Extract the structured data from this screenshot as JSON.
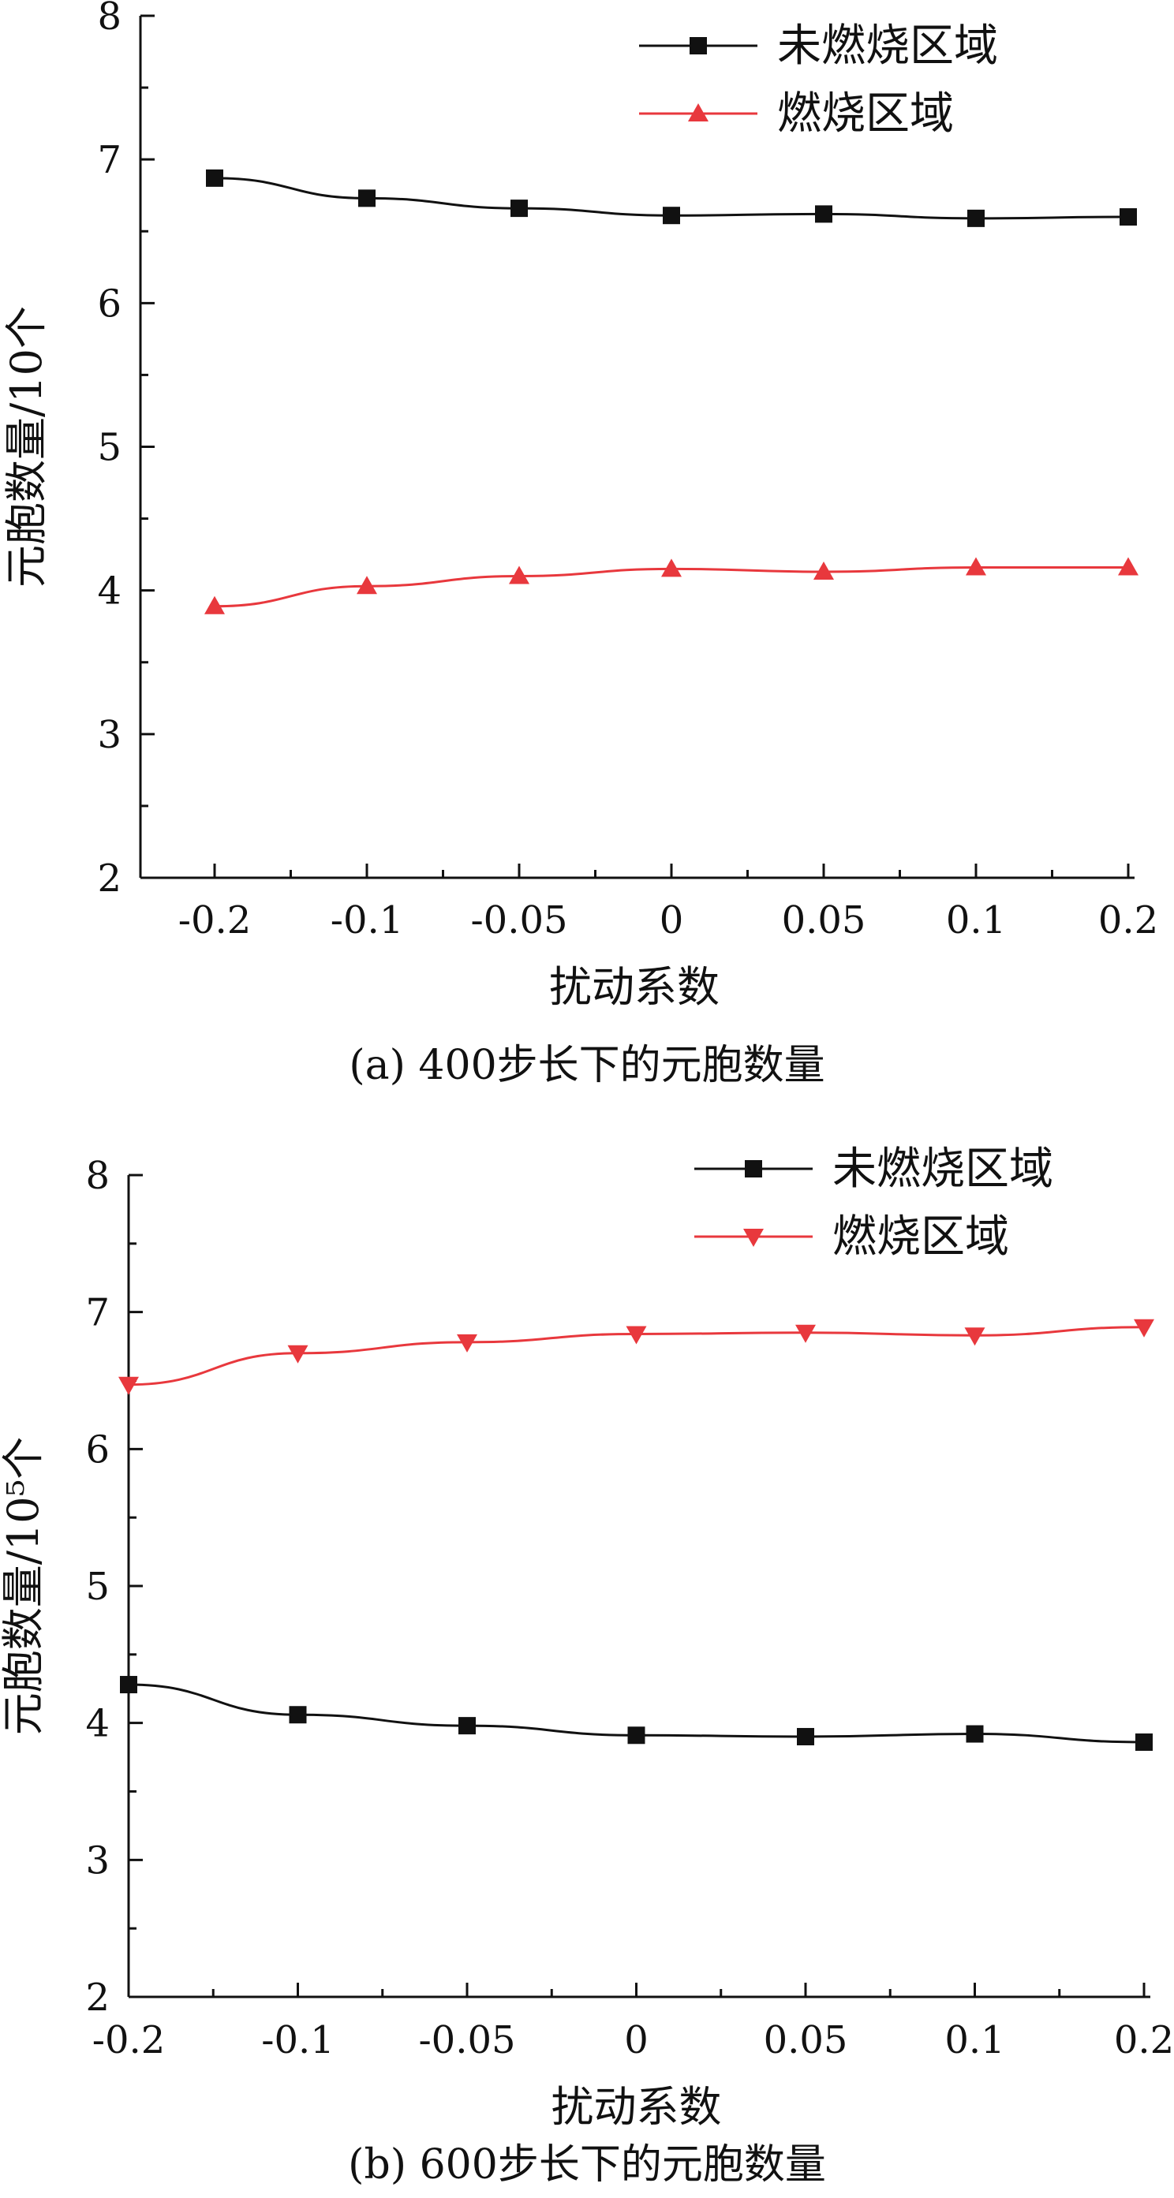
{
  "chart_data": [
    {
      "type": "line",
      "caption": "(a) 400步长下的元胞数量",
      "xlabel": "扰动系数",
      "ylabel": "元胞数量/10个",
      "categories": [
        "-0.2",
        "-0.1",
        "-0.05",
        "0",
        "0.05",
        "0.1",
        "0.2"
      ],
      "yticks": [
        "2",
        "3",
        "4",
        "5",
        "6",
        "7",
        "8"
      ],
      "ylim": [
        2,
        8
      ],
      "legend_position": "top-right",
      "series": [
        {
          "name": "未燃烧区域",
          "color": "#111111",
          "marker": "square",
          "values": [
            6.87,
            6.73,
            6.66,
            6.61,
            6.62,
            6.59,
            6.6
          ]
        },
        {
          "name": "燃烧区域",
          "color": "#e8383d",
          "marker": "triangle-up",
          "values": [
            3.89,
            4.03,
            4.1,
            4.15,
            4.13,
            4.16,
            4.16
          ]
        }
      ]
    },
    {
      "type": "line",
      "caption": "(b) 600步长下的元胞数量",
      "xlabel": "扰动系数",
      "ylabel": "元胞数量/10⁵个",
      "categories": [
        "-0.2",
        "-0.1",
        "-0.05",
        "0",
        "0.05",
        "0.1",
        "0.2"
      ],
      "yticks": [
        "2",
        "3",
        "4",
        "5",
        "6",
        "7",
        "8"
      ],
      "ylim": [
        2,
        8
      ],
      "legend_position": "top-right",
      "series": [
        {
          "name": "未燃烧区域",
          "color": "#111111",
          "marker": "square",
          "values": [
            4.28,
            4.06,
            3.98,
            3.91,
            3.9,
            3.92,
            3.86
          ]
        },
        {
          "name": "燃烧区域",
          "color": "#e8383d",
          "marker": "triangle-down",
          "values": [
            6.47,
            6.7,
            6.78,
            6.84,
            6.85,
            6.83,
            6.89
          ]
        }
      ]
    }
  ]
}
